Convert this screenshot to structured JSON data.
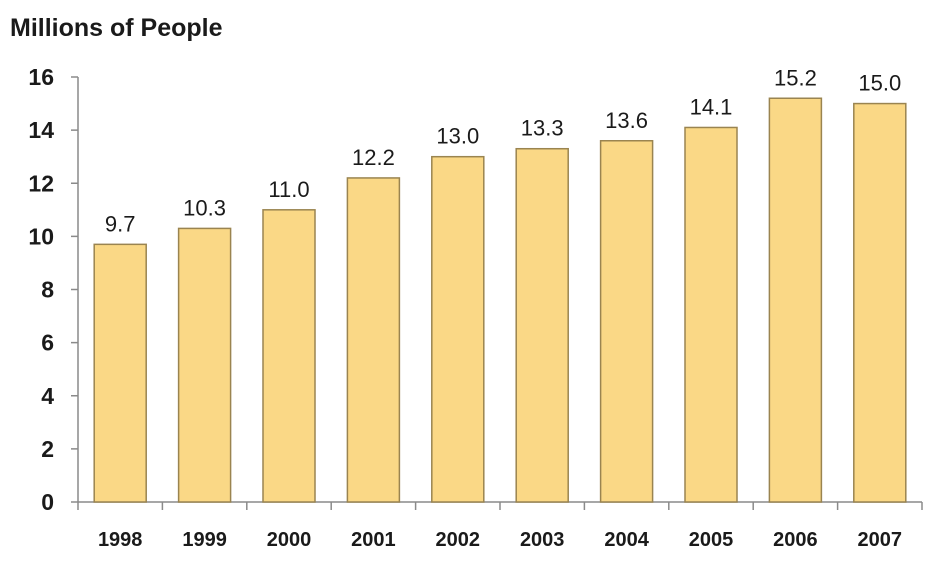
{
  "chart_data": {
    "type": "bar",
    "title": "",
    "xlabel": "",
    "ylabel": "Millions of People",
    "categories": [
      "1998",
      "1999",
      "2000",
      "2001",
      "2002",
      "2003",
      "2004",
      "2005",
      "2006",
      "2007"
    ],
    "values": [
      9.7,
      10.3,
      11.0,
      12.2,
      13.0,
      13.3,
      13.6,
      14.1,
      15.2,
      15.0
    ],
    "value_labels": [
      "9.7",
      "10.3",
      "11.0",
      "12.2",
      "13.0",
      "13.3",
      "13.6",
      "14.1",
      "15.2",
      "15.0"
    ],
    "ylim": [
      0,
      16
    ],
    "yticks": [
      "0",
      "2",
      "4",
      "6",
      "8",
      "10",
      "12",
      "14",
      "16"
    ],
    "grid": false,
    "legend": "none",
    "colors": {
      "bar_fill": "#FAD886",
      "bar_stroke": "#9A8450",
      "axis": "#8a8a8a"
    }
  }
}
